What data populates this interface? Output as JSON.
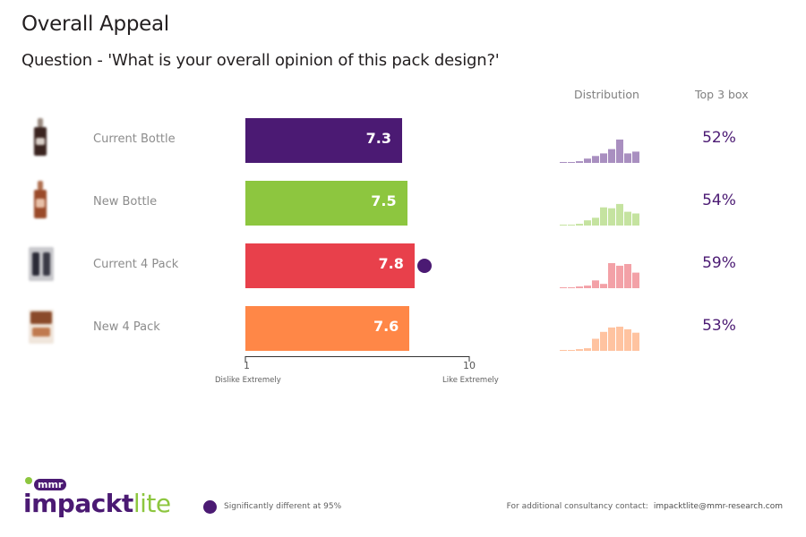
{
  "title": "Overall Appeal",
  "subtitle": "Question - 'What is your overall opinion of this pack design?'",
  "headers": {
    "distribution": "Distribution",
    "top3": "Top 3 box"
  },
  "colors": {
    "purple": "#4b1a73",
    "green": "#8dc63f",
    "red": "#e8404b",
    "orange": "#ff8747"
  },
  "chart_data": {
    "type": "bar",
    "orientation": "horizontal",
    "categories": [
      "Current Bottle",
      "New Bottle",
      "Current 4 Pack",
      "New 4 Pack"
    ],
    "values": [
      7.3,
      7.5,
      7.8,
      7.6
    ],
    "value_labels": [
      "7.3",
      "7.5",
      "7.8",
      "7.6"
    ],
    "bar_colors": [
      "#4b1a73",
      "#8dc63f",
      "#e8404b",
      "#ff8747"
    ],
    "significant": [
      false,
      false,
      true,
      false
    ],
    "xlim": [
      1,
      10
    ],
    "ticks": [
      "1",
      "10"
    ],
    "axis_captions": {
      "min": "Dislike Extremely",
      "max": "Like Extremely"
    },
    "legend": "Significantly different at 95%",
    "distribution": [
      {
        "name": "Current Bottle",
        "color": "#a98fc0",
        "values": [
          1,
          1,
          2,
          5,
          8,
          11,
          16,
          27,
          11,
          13
        ]
      },
      {
        "name": "New Bottle",
        "color": "#c5e3a0",
        "values": [
          0,
          1,
          2,
          6,
          9,
          21,
          20,
          25,
          16,
          14
        ]
      },
      {
        "name": "Current 4 Pack",
        "color": "#f3a1a7",
        "values": [
          1,
          1,
          2,
          3,
          9,
          5,
          29,
          26,
          28,
          18
        ]
      },
      {
        "name": "New 4 Pack",
        "color": "#ffc3a0",
        "values": [
          0,
          1,
          2,
          3,
          14,
          22,
          27,
          28,
          25,
          21
        ]
      }
    ],
    "top3_box": [
      "52%",
      "54%",
      "59%",
      "53%"
    ]
  },
  "footer": {
    "legend": "Significantly different at 95%",
    "contact_label": "For additional consultancy contact:",
    "contact_email": "impacktlite@mmr-research.com",
    "logo_badge": "mmr",
    "logo_word1": "impackt",
    "logo_word2": "lite"
  }
}
